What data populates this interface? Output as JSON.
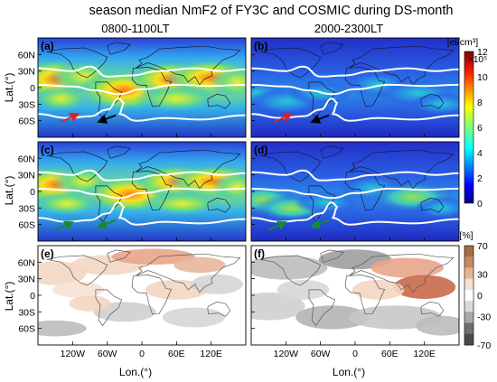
{
  "figure": {
    "title": "season median NmF2 of FY3C and COSMIC during DS-month",
    "columns": [
      "0800-1100LT",
      "2000-2300LT"
    ],
    "ylabel": "Lat.(°)",
    "xlabel": "Lon.(°)"
  },
  "chart_data": [
    {
      "type": "heatmap",
      "panels": [
        "(a)",
        "(b)",
        "(c)",
        "(d)"
      ],
      "colorbar": {
        "label": "[el/cm³]",
        "scale_label": "×10⁵",
        "ticks": [
          "12",
          "10",
          "8",
          "6",
          "4",
          "2",
          "0"
        ],
        "range": [
          0,
          12
        ],
        "colormap": "jet"
      },
      "x_ticks": [
        "120W",
        "60W",
        "0",
        "60E",
        "120E"
      ],
      "y_ticks": [
        "60N",
        "30N",
        "0",
        "30S",
        "60S"
      ],
      "xlim": [
        -180,
        180
      ],
      "ylim": [
        -90,
        90
      ]
    },
    {
      "type": "heatmap",
      "panels": [
        "(e)",
        "(f)"
      ],
      "colorbar": {
        "label": "[%]",
        "ticks": [
          "70",
          "30",
          "0",
          "-30",
          "-70"
        ],
        "range": [
          -70,
          70
        ],
        "colormap": "diverging brown-gray"
      },
      "x_ticks": [
        "120W",
        "60W",
        "0",
        "60E",
        "120E"
      ],
      "y_ticks": [
        "60N",
        "30N",
        "0",
        "30S",
        "60S"
      ],
      "xlim": [
        -180,
        180
      ],
      "ylim": [
        -90,
        90
      ]
    }
  ],
  "colors": {
    "background_blue": "#1a2cd0",
    "contour": "#ffffff",
    "arrow_red": "#e02020",
    "arrow_black": "#000000",
    "arrow_green": "#1a8a2a"
  }
}
